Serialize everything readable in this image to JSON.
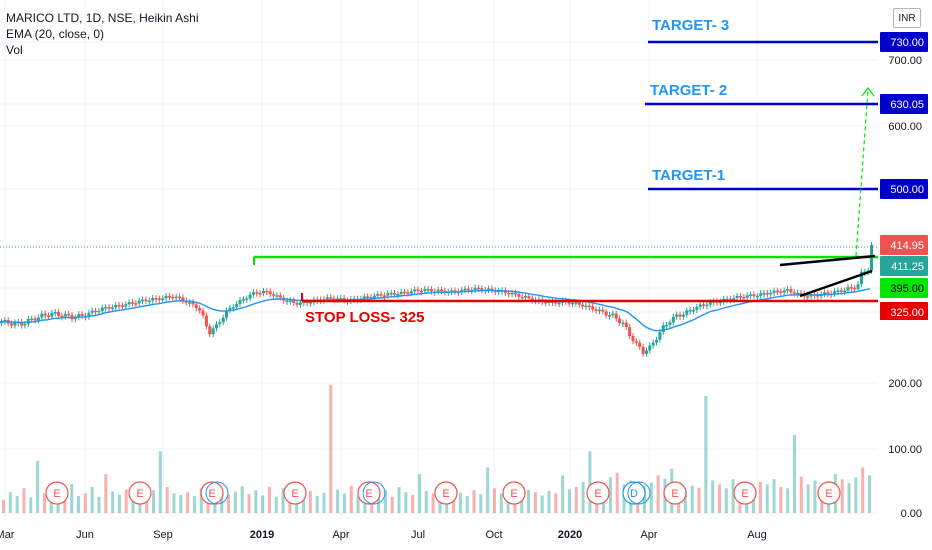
{
  "legend": {
    "symbol": "MARICO LTD, 1D, NSE, Heikin Ashi",
    "ema": "EMA (20, close, 0)",
    "vol": "Vol"
  },
  "currency": "INR",
  "colors": {
    "up": "#26a69a",
    "down": "#ef5350",
    "ema": "#2196f3",
    "target_line": "#0000cc",
    "resistance": "#00e600",
    "stop_loss": "#e60000",
    "target_text": "#2196f3",
    "stop_text": "#e60000",
    "wedge": "#000000"
  },
  "chart_data": {
    "type": "line",
    "x_ticks": [
      "Mar",
      "Jun",
      "Sep",
      "2019",
      "Apr",
      "Jul",
      "Oct",
      "2020",
      "Apr",
      "Aug"
    ],
    "y_ticks": [
      700,
      600,
      200,
      100,
      0
    ],
    "y_tick_labels": [
      "700.00",
      "600.00",
      "200.00",
      "100.00",
      "0.00"
    ],
    "price_labels": [
      {
        "value": 730,
        "text": "730.00",
        "color": "#0000cc"
      },
      {
        "value": 630.05,
        "text": "630.05",
        "color": "#0000cc"
      },
      {
        "value": 500,
        "text": "500.00",
        "color": "#0000cc"
      },
      {
        "value": 414.95,
        "text": "414.95",
        "color": "#ef5350"
      },
      {
        "value": 411.25,
        "text": "411.25",
        "color": "#26a69a"
      },
      {
        "value": 395,
        "text": "395.00",
        "color": "#00e600"
      },
      {
        "value": 325,
        "text": "325.00",
        "color": "#e60000"
      }
    ],
    "levels": [
      {
        "name": "TARGET- 3",
        "value": 730,
        "color": "#0000cc"
      },
      {
        "name": "TARGET- 2",
        "value": 630.05,
        "color": "#0000cc"
      },
      {
        "name": "TARGET-1",
        "value": 500,
        "color": "#0000cc"
      },
      {
        "name": "resistance",
        "value": 395,
        "color": "#00e600"
      },
      {
        "name": "STOP LOSS- 325",
        "value": 325,
        "color": "#e60000"
      }
    ],
    "annotations": [
      "TARGET- 3",
      "TARGET- 2",
      "TARGET-1",
      "STOP LOSS- 325"
    ],
    "earnings_markers": [
      "E",
      "E",
      "E",
      "E",
      "E",
      "E",
      "E",
      "E",
      "D",
      "E",
      "E",
      "E"
    ],
    "price_series": [
      [
        0,
        308
      ],
      [
        3,
        305
      ],
      [
        6,
        304
      ],
      [
        9,
        312
      ],
      [
        12,
        318
      ],
      [
        15,
        322
      ],
      [
        18,
        320
      ],
      [
        21,
        316
      ],
      [
        24,
        318
      ],
      [
        27,
        325
      ],
      [
        30,
        335
      ],
      [
        33,
        340
      ],
      [
        36,
        345
      ],
      [
        39,
        352
      ],
      [
        42,
        358
      ],
      [
        45,
        362
      ],
      [
        48,
        365
      ],
      [
        50,
        370
      ],
      [
        52,
        368
      ],
      [
        54,
        360
      ],
      [
        56,
        350
      ],
      [
        58,
        340
      ],
      [
        59,
        330
      ],
      [
        60,
        315
      ],
      [
        61,
        300
      ],
      [
        62,
        290
      ],
      [
        64,
        300
      ],
      [
        66,
        318
      ],
      [
        68,
        335
      ],
      [
        70,
        350
      ],
      [
        72,
        362
      ],
      [
        74,
        375
      ],
      [
        76,
        382
      ],
      [
        78,
        384
      ],
      [
        80,
        380
      ],
      [
        82,
        370
      ],
      [
        84,
        362
      ],
      [
        86,
        355
      ],
      [
        88,
        350
      ],
      [
        90,
        352
      ],
      [
        92,
        356
      ],
      [
        95,
        362
      ],
      [
        98,
        365
      ],
      [
        101,
        362
      ],
      [
        104,
        360
      ],
      [
        107,
        365
      ],
      [
        110,
        370
      ],
      [
        113,
        375
      ],
      [
        116,
        378
      ],
      [
        119,
        380
      ],
      [
        122,
        385
      ],
      [
        125,
        390
      ],
      [
        128,
        388
      ],
      [
        131,
        386
      ],
      [
        134,
        384
      ],
      [
        137,
        388
      ],
      [
        140,
        392
      ],
      [
        143,
        392
      ],
      [
        146,
        388
      ],
      [
        149,
        385
      ],
      [
        152,
        378
      ],
      [
        155,
        370
      ],
      [
        158,
        362
      ],
      [
        161,
        356
      ],
      [
        164,
        352
      ],
      [
        167,
        355
      ],
      [
        170,
        352
      ],
      [
        173,
        345
      ],
      [
        176,
        335
      ],
      [
        179,
        325
      ],
      [
        182,
        318
      ],
      [
        185,
        305
      ],
      [
        187,
        285
      ],
      [
        189,
        268
      ],
      [
        191,
        255
      ],
      [
        193,
        262
      ],
      [
        195,
        280
      ],
      [
        197,
        298
      ],
      [
        199,
        310
      ],
      [
        201,
        318
      ],
      [
        203,
        322
      ],
      [
        205,
        330
      ],
      [
        207,
        340
      ],
      [
        210,
        350
      ],
      [
        213,
        355
      ],
      [
        216,
        362
      ],
      [
        219,
        368
      ],
      [
        222,
        372
      ],
      [
        225,
        375
      ],
      [
        228,
        380
      ],
      [
        231,
        385
      ],
      [
        234,
        388
      ],
      [
        237,
        378
      ],
      [
        240,
        372
      ],
      [
        243,
        375
      ],
      [
        246,
        380
      ],
      [
        249,
        385
      ],
      [
        252,
        392
      ],
      [
        255,
        398
      ],
      [
        257,
        408
      ],
      [
        259,
        415
      ]
    ],
    "volume": [
      20,
      32,
      26,
      38,
      24,
      80,
      30,
      22,
      35,
      28,
      45,
      26,
      30,
      40,
      25,
      60,
      33,
      28,
      36,
      30,
      42,
      27,
      35,
      95,
      40,
      30,
      28,
      32,
      26,
      38,
      30,
      24,
      36,
      28,
      33,
      41,
      29,
      35,
      27,
      40,
      25,
      38,
      30,
      46,
      28,
      34,
      26,
      31,
      197,
      36,
      30,
      42,
      27,
      33,
      48,
      29,
      35,
      25,
      40,
      32,
      28,
      60,
      34,
      30,
      27,
      37,
      44,
      31,
      26,
      35,
      29,
      70,
      38,
      30,
      33,
      41,
      28,
      36,
      32,
      27,
      34,
      30,
      58,
      36,
      40,
      48,
      95,
      42,
      38,
      55,
      62,
      44,
      50,
      36,
      41,
      47,
      58,
      53,
      68,
      40,
      35,
      42,
      39,
      180,
      50,
      44,
      38,
      52,
      46,
      41,
      36,
      48,
      44,
      52,
      40,
      38,
      120,
      56,
      44,
      50,
      42,
      48,
      60,
      52,
      46,
      55,
      70,
      58
    ]
  }
}
